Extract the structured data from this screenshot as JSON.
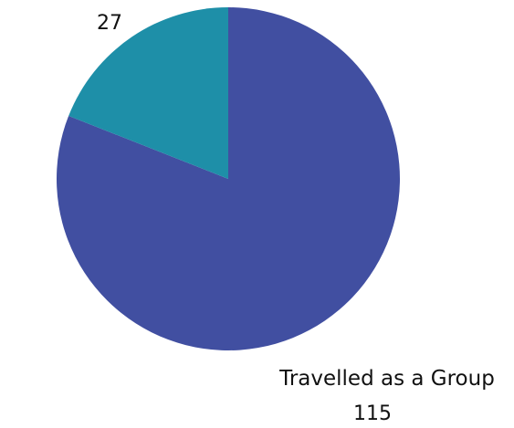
{
  "chart_data": {
    "type": "pie",
    "slices": [
      {
        "label": "Travelled as a Group",
        "value": 115,
        "color": "#414fa1"
      },
      {
        "label": "",
        "value": 27,
        "color": "#1e8fa8"
      }
    ],
    "data_labels": [
      {
        "name": "Travelled as a Group",
        "value": "115"
      },
      {
        "name": "",
        "value": "27"
      }
    ],
    "start_angle_deg": 0,
    "direction": "clockwise"
  }
}
